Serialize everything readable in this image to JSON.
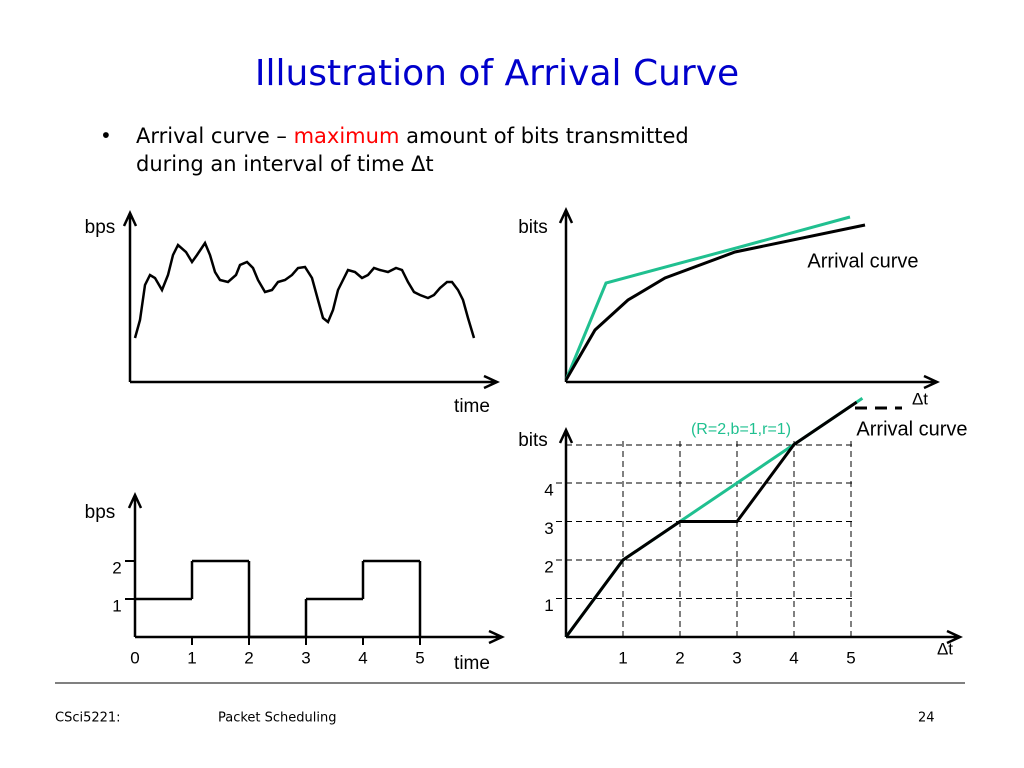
{
  "title": "Illustration of Arrival Curve",
  "bullet": {
    "before": "Arrival curve – ",
    "highlight": "maximum",
    "after": " amount of bits transmitted",
    "line2": "during an interval of time Δt"
  },
  "top_left": {
    "y_label": "bps",
    "x_label": "time"
  },
  "top_right": {
    "y_label": "bits",
    "x_label": "Δt",
    "curve_label": "Arrival curve"
  },
  "bottom_left": {
    "y_label": "bps",
    "x_label": "time",
    "xticks": [
      0,
      1,
      2,
      3,
      4,
      5
    ],
    "yticks": [
      1,
      2
    ],
    "steps": [
      1,
      2,
      0,
      1,
      2
    ]
  },
  "bottom_right": {
    "y_label": "bits",
    "x_label": "Δt",
    "xticks": [
      1,
      2,
      3,
      4,
      5
    ],
    "yticks": [
      1,
      2,
      3,
      4
    ],
    "envelope_label": "(R=2,b=1,r=1)",
    "curve_label": "Arrival curve",
    "envelope": {
      "x": [
        0,
        1,
        5.2
      ],
      "y": [
        0,
        2,
        6.2
      ]
    },
    "curve": {
      "x": [
        0,
        1,
        2,
        3,
        4,
        5.1
      ],
      "y": [
        0,
        2,
        3,
        3,
        5,
        6.1
      ]
    }
  },
  "footer": {
    "course": "CSci5221:",
    "topic": "Packet Scheduling",
    "page": "24"
  }
}
